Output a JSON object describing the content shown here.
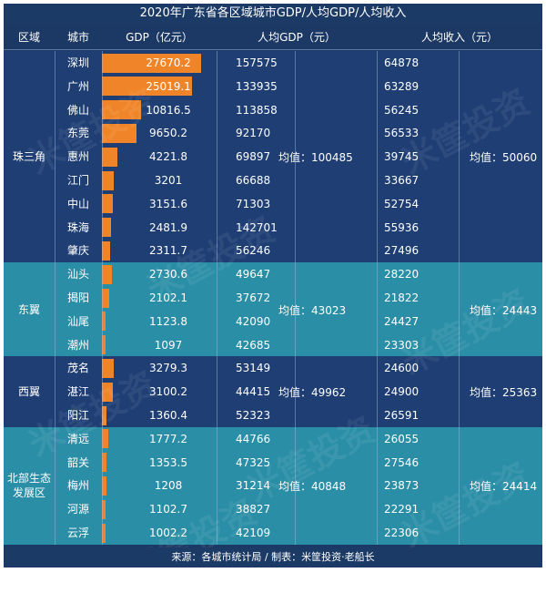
{
  "title": "2020年广东省各区域城市GDP/人均GDP/人均收入",
  "headers": {
    "region": "区域",
    "city": "城市",
    "gdp": "GDP（亿元）",
    "gdp_per_capita": "人均GDP（元）",
    "income_per_capita": "人均收入（元）"
  },
  "footer": "来源：各城市统计局 / 制表：米筐投资·老船长",
  "watermark": "米筐投资",
  "colors": {
    "bar": "#f08428",
    "dark_band": "#1e3e74",
    "teal_band": "#2a8ea6"
  },
  "chart_data": {
    "type": "table",
    "gdp_axis_max": 27670.2,
    "regions": [
      {
        "name": "珠三角",
        "gdp_per_capita_avg": "均值：100485",
        "income_avg": "均值：50060",
        "cities": [
          {
            "city": "深圳",
            "gdp": "27670.2",
            "gdp_per_capita": "157575",
            "income": "64878"
          },
          {
            "city": "广州",
            "gdp": "25019.1",
            "gdp_per_capita": "133935",
            "income": "63289"
          },
          {
            "city": "佛山",
            "gdp": "10816.5",
            "gdp_per_capita": "113858",
            "income": "56245"
          },
          {
            "city": "东莞",
            "gdp": "9650.2",
            "gdp_per_capita": "92170",
            "income": "56533"
          },
          {
            "city": "惠州",
            "gdp": "4221.8",
            "gdp_per_capita": "69897",
            "income": "39745"
          },
          {
            "city": "江门",
            "gdp": "3201",
            "gdp_per_capita": "66688",
            "income": "33667"
          },
          {
            "city": "中山",
            "gdp": "3151.6",
            "gdp_per_capita": "71303",
            "income": "52754"
          },
          {
            "city": "珠海",
            "gdp": "2481.9",
            "gdp_per_capita": "142701",
            "income": "55936"
          },
          {
            "city": "肇庆",
            "gdp": "2311.7",
            "gdp_per_capita": "56246",
            "income": "27496"
          }
        ]
      },
      {
        "name": "东翼",
        "gdp_per_capita_avg": "均值：43023",
        "income_avg": "均值：24443",
        "cities": [
          {
            "city": "汕头",
            "gdp": "2730.6",
            "gdp_per_capita": "49647",
            "income": "28220"
          },
          {
            "city": "揭阳",
            "gdp": "2102.1",
            "gdp_per_capita": "37672",
            "income": "21822"
          },
          {
            "city": "汕尾",
            "gdp": "1123.8",
            "gdp_per_capita": "42090",
            "income": "24427"
          },
          {
            "city": "潮州",
            "gdp": "1097",
            "gdp_per_capita": "42685",
            "income": "23303"
          }
        ]
      },
      {
        "name": "西翼",
        "gdp_per_capita_avg": "均值：49962",
        "income_avg": "均值：25363",
        "cities": [
          {
            "city": "茂名",
            "gdp": "3279.3",
            "gdp_per_capita": "53149",
            "income": "24600"
          },
          {
            "city": "湛江",
            "gdp": "3100.2",
            "gdp_per_capita": "44415",
            "income": "24900"
          },
          {
            "city": "阳江",
            "gdp": "1360.4",
            "gdp_per_capita": "52323",
            "income": "26591"
          }
        ]
      },
      {
        "name": "北部生态发展区",
        "gdp_per_capita_avg": "均值：40848",
        "income_avg": "均值：24414",
        "cities": [
          {
            "city": "清远",
            "gdp": "1777.2",
            "gdp_per_capita": "44766",
            "income": "26055"
          },
          {
            "city": "韶关",
            "gdp": "1353.5",
            "gdp_per_capita": "47325",
            "income": "27546"
          },
          {
            "city": "梅州",
            "gdp": "1208",
            "gdp_per_capita": "31214",
            "income": "23873"
          },
          {
            "city": "河源",
            "gdp": "1102.7",
            "gdp_per_capita": "38827",
            "income": "22291"
          },
          {
            "city": "云浮",
            "gdp": "1002.2",
            "gdp_per_capita": "42109",
            "income": "22306"
          }
        ]
      }
    ]
  }
}
